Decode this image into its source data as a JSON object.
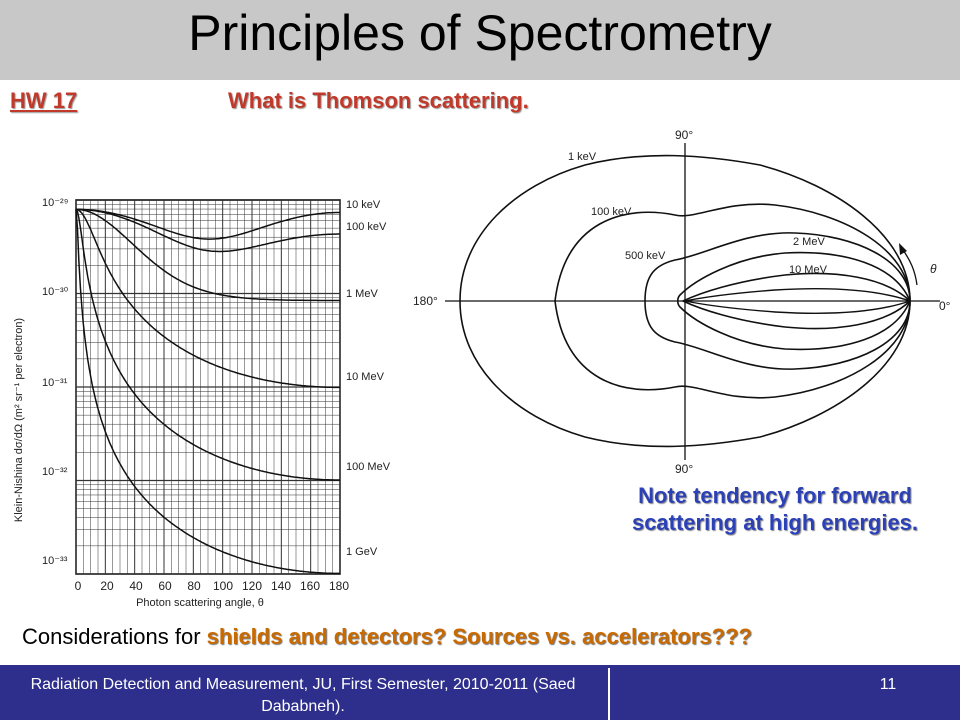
{
  "slide": {
    "title": "Principles of Spectrometry",
    "hw_label": "HW 17",
    "hw_question": "What is Thomson scattering.",
    "note": "Note tendency for forward scattering at high energies.",
    "considerations_prefix": "Considerations for ",
    "considerations_highlight": "shields and detectors? Sources vs. accelerators???",
    "footer_text": "Radiation Detection and Measurement, JU, First Semester, 2010-2011 (Saed Dababneh).",
    "page_number": "11"
  },
  "left_figure": {
    "ylabel": "Klein-Nishina dσ/dΩ (m² sr⁻¹ per electron)",
    "xlabel": "Photon scattering angle, θ",
    "x_ticks": [
      "0",
      "20",
      "40",
      "60",
      "80",
      "100",
      "120",
      "140",
      "160",
      "180"
    ],
    "y_ticks": [
      "10⁻²⁹",
      "10⁻³⁰",
      "10⁻³¹",
      "10⁻³²",
      "10⁻³³"
    ],
    "curve_labels": [
      "10 keV",
      "100 keV",
      "1 MeV",
      "10 MeV",
      "100 MeV",
      "1 GeV"
    ]
  },
  "right_figure": {
    "angle_labels": [
      "90°",
      "180°",
      "0°",
      "90°",
      "θ"
    ],
    "curve_labels": [
      "1 keV",
      "100 keV",
      "500 keV",
      "2 MeV",
      "10 MeV"
    ]
  }
}
